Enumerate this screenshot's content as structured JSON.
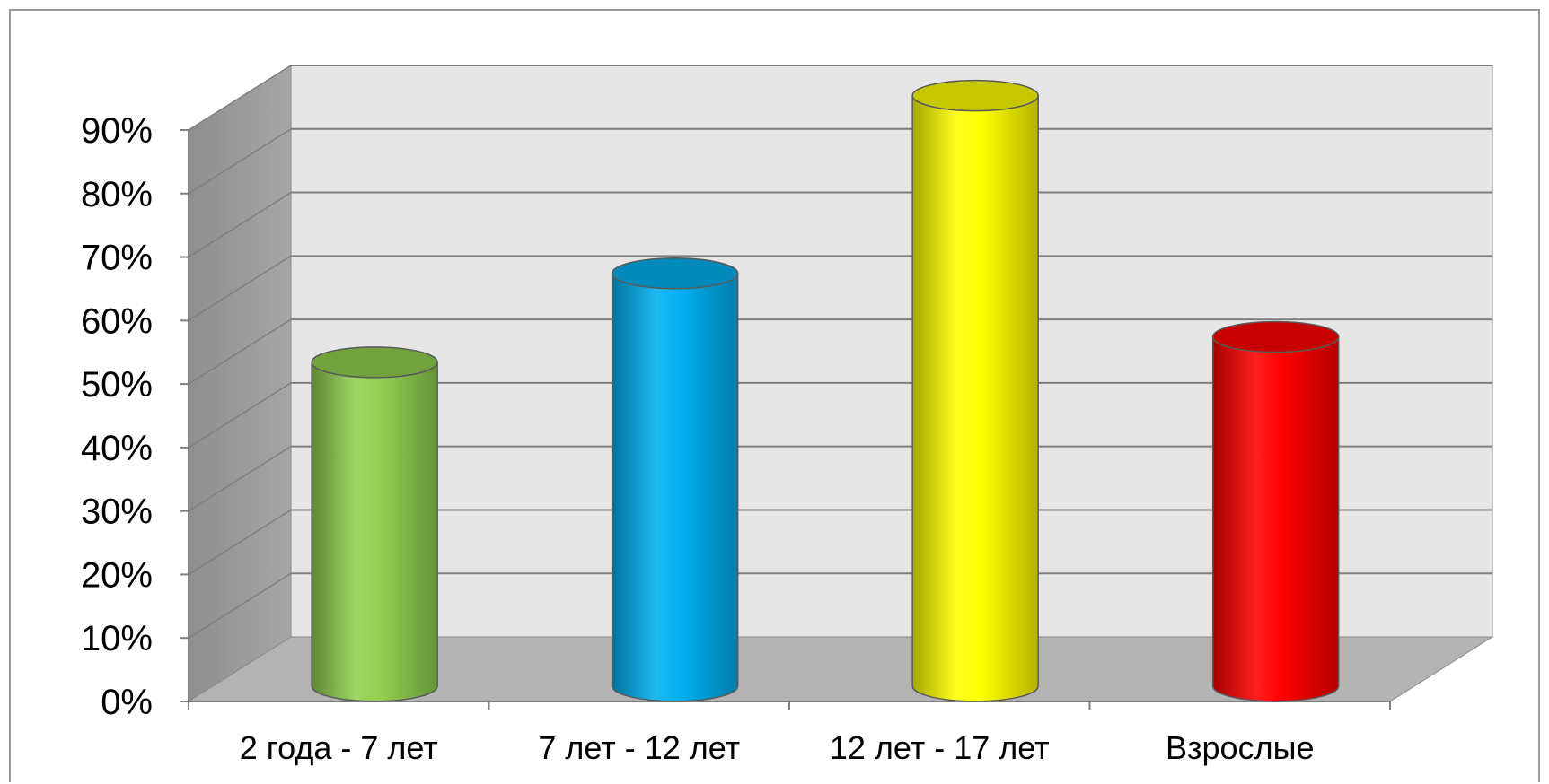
{
  "chart_data": {
    "type": "bar",
    "style": "3d-cylinder",
    "categories": [
      "2 года  - 7 лет",
      "7 лет - 12 лет",
      "12 лет - 17 лет",
      "Взрослые"
    ],
    "values": [
      0.51,
      0.65,
      0.93,
      0.55
    ],
    "colors": [
      "#92d050",
      "#00b0f0",
      "#ffff00",
      "#ff0000"
    ],
    "ylim": [
      0,
      0.9
    ],
    "yticks": [
      "0%",
      "10%",
      "20%",
      "30%",
      "40%",
      "50%",
      "60%",
      "70%",
      "80%",
      "90%"
    ],
    "grid": true,
    "legend": "none",
    "title": "",
    "xlabel": "",
    "ylabel": ""
  }
}
